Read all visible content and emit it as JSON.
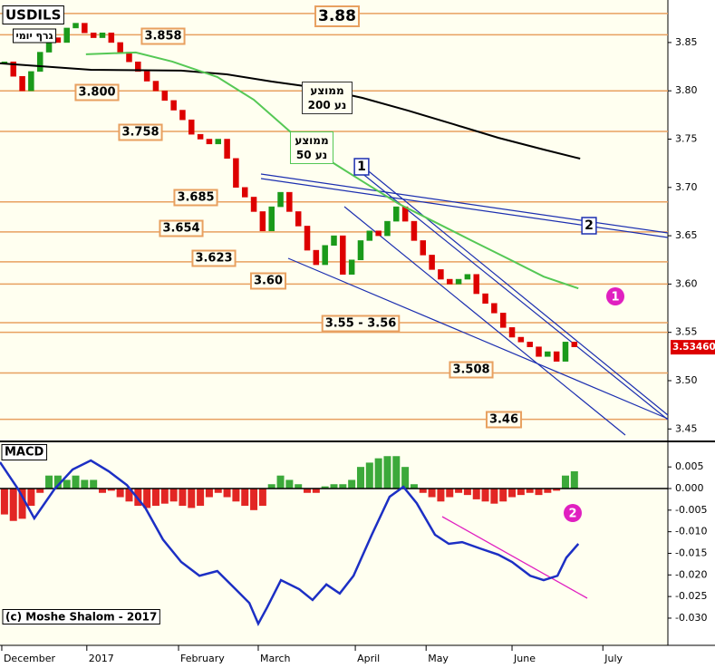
{
  "chart_data": [
    {
      "type": "candlestick",
      "title": "USDILS",
      "subtitle": "גרף יומי",
      "x": [
        1,
        3,
        5,
        7,
        9,
        11,
        13,
        15,
        17,
        19,
        21,
        23,
        25,
        27,
        29,
        31,
        33,
        35,
        37,
        39,
        41,
        43,
        45,
        47,
        49,
        51,
        53,
        55,
        57,
        59,
        61,
        63,
        65,
        67,
        69,
        71,
        73,
        75,
        77,
        79,
        81,
        83,
        85,
        87,
        89,
        91,
        93,
        95,
        97,
        99,
        101,
        103,
        105,
        107,
        109,
        111,
        113,
        115,
        117,
        119,
        121,
        123,
        125,
        127,
        129
      ],
      "close": [
        3.83,
        3.815,
        3.8,
        3.82,
        3.84,
        3.855,
        3.85,
        3.865,
        3.87,
        3.86,
        3.855,
        3.86,
        3.85,
        3.84,
        3.83,
        3.82,
        3.81,
        3.8,
        3.79,
        3.78,
        3.77,
        3.755,
        3.75,
        3.745,
        3.75,
        3.73,
        3.7,
        3.69,
        3.675,
        3.655,
        3.68,
        3.695,
        3.675,
        3.66,
        3.635,
        3.62,
        3.64,
        3.65,
        3.61,
        3.625,
        3.645,
        3.655,
        3.65,
        3.665,
        3.68,
        3.665,
        3.645,
        3.63,
        3.615,
        3.605,
        3.6,
        3.605,
        3.61,
        3.59,
        3.58,
        3.57,
        3.555,
        3.545,
        3.54,
        3.535,
        3.525,
        3.53,
        3.52,
        3.54,
        3.535
      ],
      "colors": {
        "up": "#1a9a1a",
        "down": "#dd0000"
      },
      "lines": [
        {
          "name": "ממוצע נע 200",
          "color": "#000000",
          "x": [
            0,
            20.4,
            40.7,
            50.9,
            61.1,
            71.2,
            81.4,
            91.6,
            101.8,
            111.9,
            122.1,
            130.3
          ],
          "values": [
            3.8284,
            3.8218,
            3.8209,
            3.8171,
            3.8096,
            3.8031,
            3.7927,
            3.7796,
            3.7655,
            3.7514,
            3.7392,
            3.7298
          ]
        },
        {
          "name": "ממוצע נע 50",
          "color": "#55c855",
          "x": [
            19.3,
            30.5,
            38.7,
            48.8,
            57.0,
            65.1,
            73.3,
            81.4,
            89.6,
            97.7,
            105.8,
            114.0,
            122.1,
            129.9
          ],
          "values": [
            3.8378,
            3.8397,
            3.8303,
            3.8143,
            3.7908,
            3.758,
            3.7298,
            3.7063,
            3.6829,
            3.6641,
            3.6453,
            3.6265,
            3.6077,
            3.5955
          ]
        }
      ],
      "levels": [
        3.88,
        3.858,
        3.8,
        3.758,
        3.685,
        3.654,
        3.623,
        3.6,
        3.56,
        3.55,
        3.508,
        3.46
      ],
      "level_labels": [
        "3.88",
        "3.858",
        "3.800",
        "3.758",
        "3.685",
        "3.654",
        "3.623",
        "3.60",
        "3.55 - 3.56",
        "3.508",
        "3.46"
      ],
      "trend_labels": [
        "1",
        "2"
      ],
      "marker": "1",
      "last_price": {
        "value": 3.5346,
        "label": "3.53460"
      },
      "xlim": [
        0,
        150
      ],
      "ylim": [
        3.439,
        3.894
      ],
      "yticks": [
        3.85,
        {
          "value": 3.8,
          "label": "3.80"
        },
        3.75,
        {
          "value": 3.7,
          "label": "3.70"
        },
        3.65,
        {
          "value": 3.6,
          "label": "3.60"
        },
        3.55,
        {
          "value": 3.5,
          "label": "3.50"
        },
        3.45
      ]
    },
    {
      "type": "macd",
      "title": "MACD",
      "footer": "(c) Moshe Shalom - 2017",
      "marker": "2",
      "x": [
        1,
        3,
        5,
        7,
        9,
        11,
        13,
        15,
        17,
        19,
        21,
        23,
        25,
        27,
        29,
        31,
        33,
        35,
        37,
        39,
        41,
        43,
        45,
        47,
        49,
        51,
        53,
        55,
        57,
        59,
        61,
        63,
        65,
        67,
        69,
        71,
        73,
        75,
        77,
        79,
        81,
        83,
        85,
        87,
        89,
        91,
        93,
        95,
        97,
        99,
        101,
        103,
        105,
        107,
        109,
        111,
        113,
        115,
        117,
        119,
        121,
        123,
        125,
        127,
        129
      ],
      "histogram": [
        -0.006,
        -0.0075,
        -0.007,
        -0.004,
        -0.001,
        0.003,
        0.003,
        0.002,
        0.003,
        0.002,
        0.002,
        -0.001,
        -0.0005,
        -0.002,
        -0.003,
        -0.004,
        -0.0045,
        -0.004,
        -0.0035,
        -0.003,
        -0.004,
        -0.0045,
        -0.004,
        -0.002,
        -0.001,
        -0.002,
        -0.003,
        -0.004,
        -0.005,
        -0.004,
        0.001,
        0.003,
        0.002,
        0.001,
        -0.001,
        -0.001,
        0.0005,
        0.001,
        0.001,
        0.002,
        0.005,
        0.006,
        0.007,
        0.0075,
        0.0075,
        0.005,
        0.001,
        -0.001,
        -0.002,
        -0.003,
        -0.002,
        -0.001,
        -0.0015,
        -0.0025,
        -0.003,
        -0.0035,
        -0.003,
        -0.002,
        -0.0015,
        -0.001,
        -0.0015,
        -0.001,
        -0.0005,
        0.003,
        0.004
      ],
      "colors": {
        "up": "#1a9a1a",
        "down": "#dd0000"
      },
      "line": {
        "color": "#1c2fc4",
        "x": [
          0,
          4.1,
          7.7,
          12.2,
          16.3,
          20.4,
          24.4,
          28.5,
          32.6,
          36.6,
          40.7,
          44.8,
          48.8,
          52.9,
          56,
          58,
          60,
          63.1,
          67.2,
          70.2,
          73.3,
          76.3,
          79.4,
          83.5,
          87.5,
          90.6,
          93.6,
          97.7,
          100.8,
          103.8,
          107.9,
          111.9,
          115,
          119.1,
          122.1,
          125.2,
          127.2,
          129.9
        ],
        "values": [
          0.0061,
          -0.0002,
          -0.0069,
          -0.0002,
          0.0044,
          0.0065,
          0.004,
          0.0008,
          -0.0044,
          -0.0118,
          -0.017,
          -0.0202,
          -0.0191,
          -0.0233,
          -0.0265,
          -0.0313,
          -0.0275,
          -0.0212,
          -0.0233,
          -0.0258,
          -0.0222,
          -0.0243,
          -0.0202,
          -0.0107,
          -0.0019,
          0.0004,
          -0.0034,
          -0.0107,
          -0.0128,
          -0.0124,
          -0.0139,
          -0.0153,
          -0.017,
          -0.0202,
          -0.0212,
          -0.0202,
          -0.016,
          -0.0128
        ]
      },
      "xlim": [
        0,
        150
      ],
      "ylim": [
        -0.0363,
        0.0107
      ],
      "yticks": [
        {
          "value": 0.005,
          "label": "0.005"
        },
        {
          "value": 0,
          "label": "0.000"
        },
        {
          "value": -0.005,
          "label": "-0.005"
        },
        {
          "value": -0.01,
          "label": "-0.010"
        },
        {
          "value": -0.015,
          "label": "-0.015"
        },
        {
          "value": -0.02,
          "label": "-0.020"
        },
        {
          "value": -0.025,
          "label": "-0.025"
        },
        {
          "value": -0.03,
          "label": "-0.030"
        }
      ],
      "xticks": [
        {
          "value": 0.4,
          "label": "December"
        },
        {
          "value": 19.5,
          "label": "2017"
        },
        {
          "value": 40.1,
          "label": "February"
        },
        {
          "value": 58,
          "label": "March"
        },
        {
          "value": 79.8,
          "label": "April"
        },
        {
          "value": 95.7,
          "label": "May"
        },
        {
          "value": 115,
          "label": "June"
        },
        {
          "value": 135.4,
          "label": "July"
        }
      ]
    }
  ]
}
